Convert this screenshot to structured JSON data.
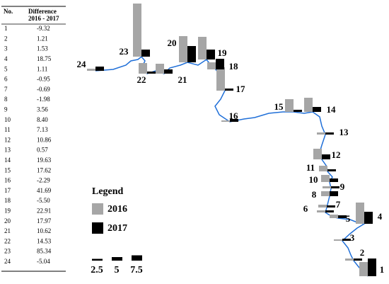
{
  "table": {
    "header": [
      "No.",
      "Difference",
      "2016 - 2017"
    ],
    "rows": [
      [
        "1",
        "-9.32"
      ],
      [
        "2",
        "1.21"
      ],
      [
        "3",
        "1.53"
      ],
      [
        "4",
        "18.75"
      ],
      [
        "5",
        "1.11"
      ],
      [
        "6",
        "-0.95"
      ],
      [
        "7",
        "-0.69"
      ],
      [
        "8",
        "-1.98"
      ],
      [
        "9",
        "3.56"
      ],
      [
        "10",
        "8.40"
      ],
      [
        "11",
        "7.13"
      ],
      [
        "12",
        "10.86"
      ],
      [
        "13",
        "0.57"
      ],
      [
        "14",
        "19.63"
      ],
      [
        "15",
        "17.62"
      ],
      [
        "16",
        "-2.29"
      ],
      [
        "17",
        "41.69"
      ],
      [
        "18",
        "-5.50"
      ],
      [
        "19",
        "22.91"
      ],
      [
        "20",
        "17.97"
      ],
      [
        "21",
        "10.62"
      ],
      [
        "22",
        "14.53"
      ],
      [
        "23",
        "85.34"
      ],
      [
        "24",
        "-5.04"
      ]
    ]
  },
  "map": {
    "stations": [
      "1",
      "2",
      "3",
      "4",
      "5",
      "6",
      "7",
      "8",
      "9",
      "10",
      "11",
      "12",
      "13",
      "14",
      "15",
      "16",
      "17",
      "18",
      "19",
      "20",
      "21",
      "22",
      "23",
      "24"
    ],
    "series": [
      {
        "name": "2016",
        "color": "#a6a6a6",
        "values": [
          20,
          3,
          2,
          30,
          5,
          3,
          4,
          7,
          3,
          10,
          8,
          15,
          3,
          20,
          18,
          2,
          33,
          10,
          32,
          37,
          14,
          15,
          75,
          3
        ]
      },
      {
        "name": "2017",
        "color": "#000000",
        "values": [
          25,
          3,
          3,
          17,
          4,
          3,
          3,
          7,
          3,
          5,
          3,
          7,
          3,
          7,
          3,
          4,
          3,
          15,
          14,
          23,
          6,
          3,
          10,
          6
        ]
      }
    ],
    "legend_title": "Legend",
    "scale": [
      {
        "value": 2.5,
        "label": "2.5"
      },
      5,
      {
        "value": 7.5,
        "label": "7.5"
      }
    ]
  }
}
